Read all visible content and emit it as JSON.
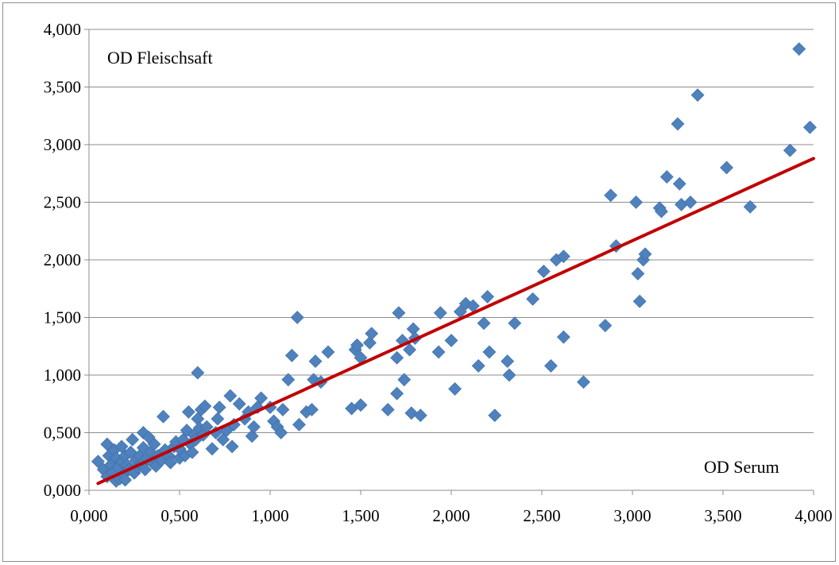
{
  "chart_data": {
    "type": "scatter",
    "title": "",
    "xlabel": "",
    "ylabel": "",
    "xlim": [
      0,
      4
    ],
    "ylim": [
      0,
      4
    ],
    "x_ticks": [
      "0,000",
      "0,500",
      "1,000",
      "1,500",
      "2,000",
      "2,500",
      "3,000",
      "3,500",
      "4,000"
    ],
    "y_ticks": [
      "0,000",
      "0,500",
      "1,000",
      "1,500",
      "2,000",
      "2,500",
      "3,000",
      "3,500",
      "4,000"
    ],
    "grid": {
      "horizontal": true,
      "vertical": false
    },
    "legend": "none",
    "annotations": {
      "y_axis_note": "OD Fleischsaft",
      "x_axis_note": "OD Serum"
    },
    "colors": {
      "points": "#4f81bd",
      "trend": "#c00000",
      "grid": "#8c8c8c"
    },
    "trendline": {
      "x": [
        0.05,
        4.0
      ],
      "y": [
        0.06,
        2.88
      ]
    },
    "points": [
      [
        0.05,
        0.25
      ],
      [
        0.08,
        0.18
      ],
      [
        0.1,
        0.4
      ],
      [
        0.1,
        0.12
      ],
      [
        0.11,
        0.3
      ],
      [
        0.12,
        0.22
      ],
      [
        0.13,
        0.15
      ],
      [
        0.14,
        0.35
      ],
      [
        0.15,
        0.08
      ],
      [
        0.15,
        0.28
      ],
      [
        0.16,
        0.2
      ],
      [
        0.17,
        0.1
      ],
      [
        0.18,
        0.38
      ],
      [
        0.18,
        0.25
      ],
      [
        0.19,
        0.14
      ],
      [
        0.2,
        0.3
      ],
      [
        0.2,
        0.09
      ],
      [
        0.21,
        0.22
      ],
      [
        0.22,
        0.18
      ],
      [
        0.23,
        0.33
      ],
      [
        0.24,
        0.44
      ],
      [
        0.25,
        0.15
      ],
      [
        0.26,
        0.26
      ],
      [
        0.27,
        0.2
      ],
      [
        0.28,
        0.3
      ],
      [
        0.29,
        0.22
      ],
      [
        0.3,
        0.37
      ],
      [
        0.3,
        0.5
      ],
      [
        0.31,
        0.18
      ],
      [
        0.32,
        0.28
      ],
      [
        0.33,
        0.46
      ],
      [
        0.34,
        0.33
      ],
      [
        0.35,
        0.24
      ],
      [
        0.36,
        0.4
      ],
      [
        0.37,
        0.21
      ],
      [
        0.38,
        0.3
      ],
      [
        0.4,
        0.26
      ],
      [
        0.41,
        0.64
      ],
      [
        0.42,
        0.35
      ],
      [
        0.44,
        0.3
      ],
      [
        0.45,
        0.24
      ],
      [
        0.47,
        0.38
      ],
      [
        0.48,
        0.42
      ],
      [
        0.5,
        0.28
      ],
      [
        0.5,
        0.36
      ],
      [
        0.52,
        0.44
      ],
      [
        0.53,
        0.3
      ],
      [
        0.54,
        0.52
      ],
      [
        0.55,
        0.68
      ],
      [
        0.56,
        0.4
      ],
      [
        0.57,
        0.33
      ],
      [
        0.58,
        0.48
      ],
      [
        0.59,
        0.44
      ],
      [
        0.6,
        1.02
      ],
      [
        0.6,
        0.62
      ],
      [
        0.61,
        0.54
      ],
      [
        0.62,
        0.7
      ],
      [
        0.63,
        0.48
      ],
      [
        0.64,
        0.73
      ],
      [
        0.65,
        0.55
      ],
      [
        0.68,
        0.36
      ],
      [
        0.7,
        0.5
      ],
      [
        0.71,
        0.62
      ],
      [
        0.72,
        0.72
      ],
      [
        0.74,
        0.44
      ],
      [
        0.76,
        0.52
      ],
      [
        0.78,
        0.82
      ],
      [
        0.79,
        0.38
      ],
      [
        0.8,
        0.57
      ],
      [
        0.83,
        0.75
      ],
      [
        0.86,
        0.62
      ],
      [
        0.88,
        0.68
      ],
      [
        0.9,
        0.47
      ],
      [
        0.91,
        0.55
      ],
      [
        0.93,
        0.72
      ],
      [
        0.95,
        0.8
      ],
      [
        1.0,
        0.72
      ],
      [
        1.02,
        0.6
      ],
      [
        1.04,
        0.55
      ],
      [
        1.06,
        0.5
      ],
      [
        1.07,
        0.7
      ],
      [
        1.1,
        0.96
      ],
      [
        1.12,
        1.17
      ],
      [
        1.15,
        1.5
      ],
      [
        1.16,
        0.57
      ],
      [
        1.2,
        0.68
      ],
      [
        1.23,
        0.7
      ],
      [
        1.24,
        0.96
      ],
      [
        1.25,
        1.12
      ],
      [
        1.28,
        0.94
      ],
      [
        1.32,
        1.2
      ],
      [
        1.45,
        0.71
      ],
      [
        1.47,
        1.22
      ],
      [
        1.48,
        1.26
      ],
      [
        1.5,
        0.74
      ],
      [
        1.5,
        1.15
      ],
      [
        1.55,
        1.28
      ],
      [
        1.56,
        1.36
      ],
      [
        1.65,
        0.7
      ],
      [
        1.7,
        0.84
      ],
      [
        1.7,
        1.15
      ],
      [
        1.71,
        1.54
      ],
      [
        1.73,
        1.3
      ],
      [
        1.74,
        0.96
      ],
      [
        1.77,
        1.22
      ],
      [
        1.78,
        0.67
      ],
      [
        1.79,
        1.4
      ],
      [
        1.8,
        1.32
      ],
      [
        1.83,
        0.65
      ],
      [
        1.93,
        1.2
      ],
      [
        1.94,
        1.54
      ],
      [
        2.0,
        1.3
      ],
      [
        2.02,
        0.88
      ],
      [
        2.05,
        1.55
      ],
      [
        2.08,
        1.62
      ],
      [
        2.12,
        1.6
      ],
      [
        2.15,
        1.08
      ],
      [
        2.18,
        1.45
      ],
      [
        2.2,
        1.68
      ],
      [
        2.21,
        1.2
      ],
      [
        2.24,
        0.65
      ],
      [
        2.31,
        1.12
      ],
      [
        2.32,
        1.0
      ],
      [
        2.35,
        1.45
      ],
      [
        2.45,
        1.66
      ],
      [
        2.51,
        1.9
      ],
      [
        2.55,
        1.08
      ],
      [
        2.58,
        2.0
      ],
      [
        2.62,
        2.03
      ],
      [
        2.62,
        1.33
      ],
      [
        2.73,
        0.94
      ],
      [
        2.85,
        1.43
      ],
      [
        2.88,
        2.56
      ],
      [
        2.91,
        2.12
      ],
      [
        3.02,
        2.5
      ],
      [
        3.03,
        1.88
      ],
      [
        3.04,
        1.64
      ],
      [
        3.06,
        2.0
      ],
      [
        3.07,
        2.05
      ],
      [
        3.15,
        2.45
      ],
      [
        3.16,
        2.42
      ],
      [
        3.19,
        2.72
      ],
      [
        3.25,
        3.18
      ],
      [
        3.26,
        2.66
      ],
      [
        3.27,
        2.48
      ],
      [
        3.32,
        2.5
      ],
      [
        3.36,
        3.43
      ],
      [
        3.52,
        2.8
      ],
      [
        3.65,
        2.46
      ],
      [
        3.87,
        2.95
      ],
      [
        3.92,
        3.83
      ],
      [
        3.98,
        3.15
      ]
    ]
  }
}
